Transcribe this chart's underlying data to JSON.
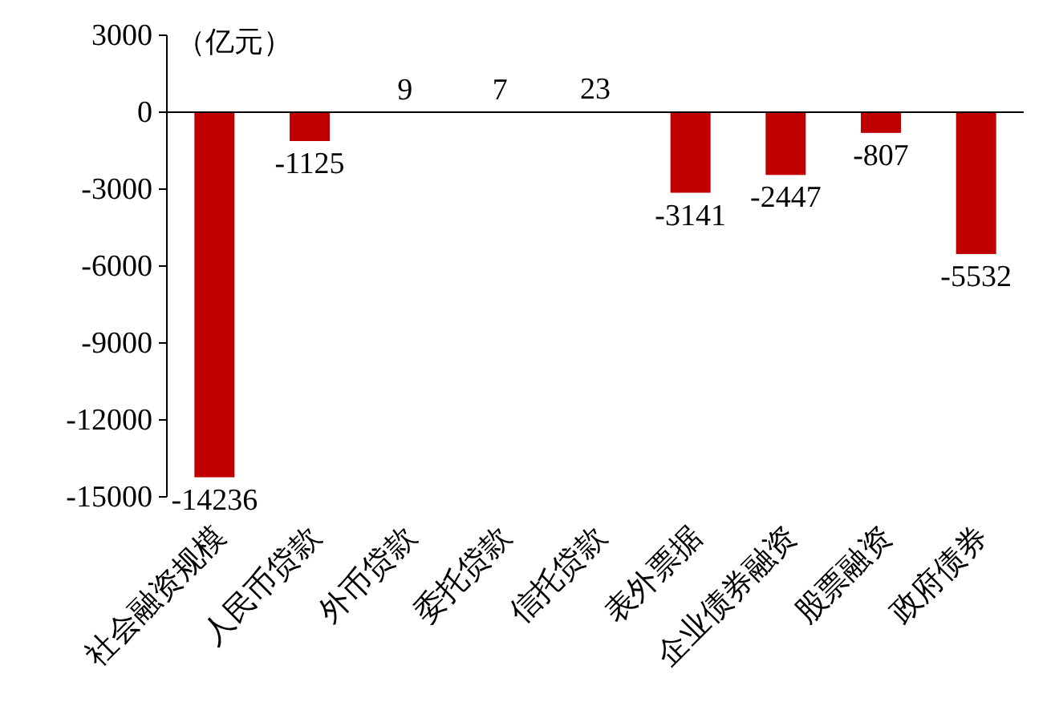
{
  "chart_data": {
    "type": "bar",
    "ylabel": "（亿元）",
    "categories": [
      "社会融资规模",
      "人民币贷款",
      "外币贷款",
      "委托贷款",
      "信托贷款",
      "表外票据",
      "企业债券融资",
      "股票融资",
      "政府债券"
    ],
    "values": [
      -14236,
      -1125,
      9,
      7,
      23,
      -3141,
      -2447,
      -807,
      -5532
    ],
    "color": "#c00000",
    "ylim": [
      -15000,
      3000
    ],
    "yticks": [
      -15000,
      -12000,
      -9000,
      -6000,
      -3000,
      0,
      3000
    ],
    "data_labels": true
  }
}
